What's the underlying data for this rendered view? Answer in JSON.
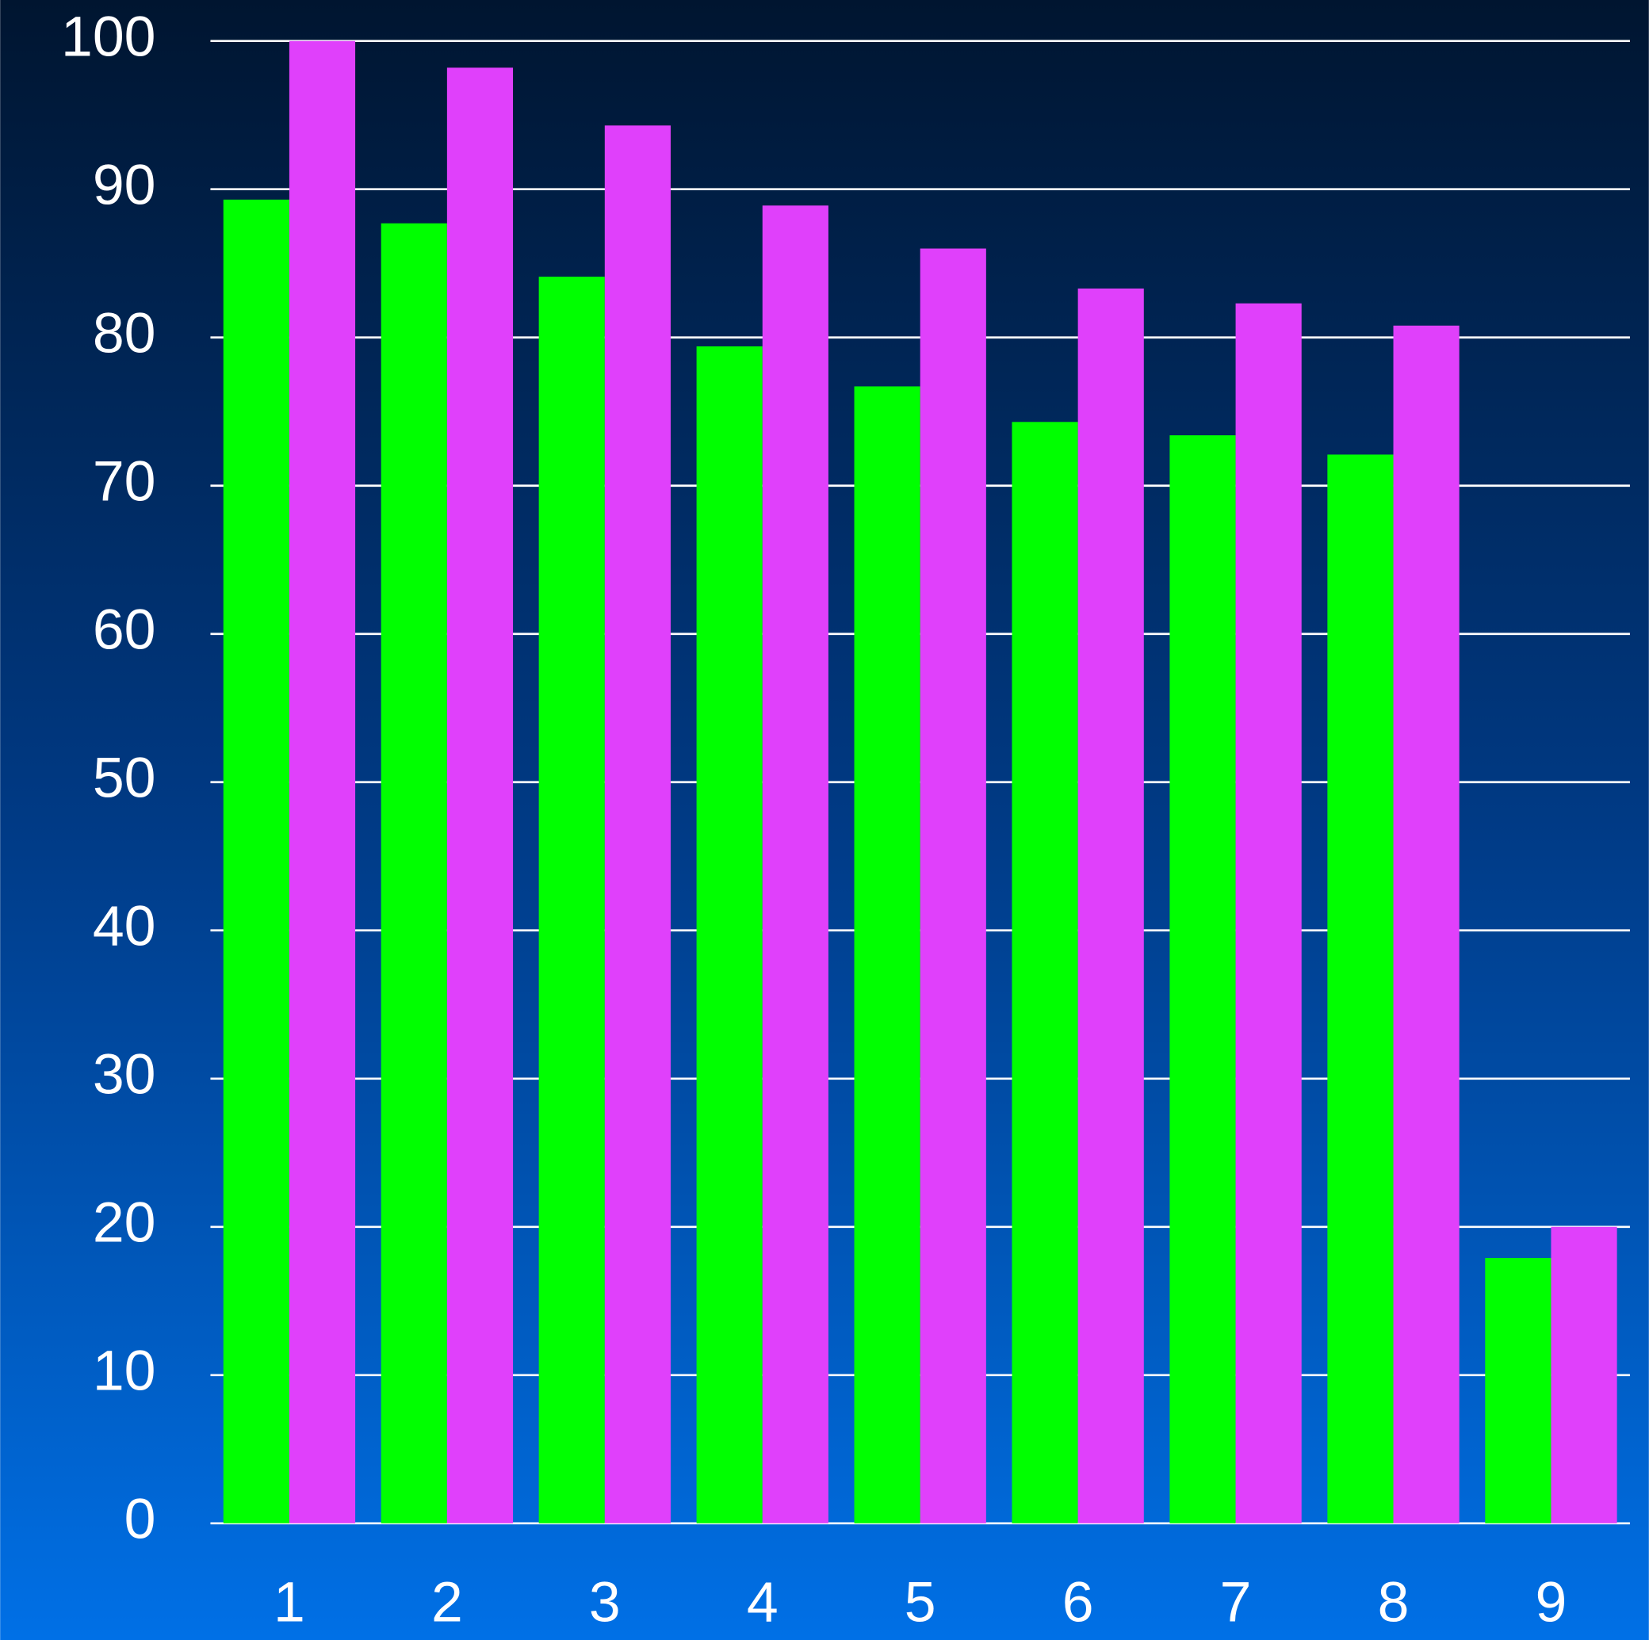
{
  "chart_data": {
    "type": "bar",
    "categories": [
      "1",
      "2",
      "3",
      "4",
      "5",
      "6",
      "7",
      "8",
      "9"
    ],
    "series": [
      {
        "color": "#00ff00",
        "values": [
          89.3,
          87.7,
          84.1,
          79.4,
          76.7,
          74.3,
          73.4,
          72.1,
          17.9
        ]
      },
      {
        "color": "#e040fb",
        "values": [
          100,
          98.2,
          94.3,
          88.9,
          86.0,
          83.3,
          82.3,
          80.8,
          20.0
        ]
      }
    ],
    "ylim": [
      0,
      100
    ],
    "yticks": [
      0,
      10,
      20,
      30,
      40,
      50,
      60,
      70,
      80,
      90,
      100
    ],
    "grid": true
  }
}
